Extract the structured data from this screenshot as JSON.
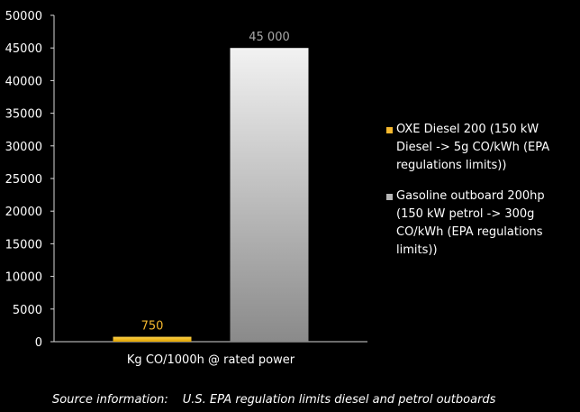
{
  "chart_data": {
    "type": "bar",
    "categories": [
      "Kg CO/1000h @ rated power"
    ],
    "series": [
      {
        "name": "OXE Diesel 200 (150 kW Diesel -> 5g CO/kWh (EPA regulations limits))",
        "values": [
          750
        ],
        "color": "#f5b82e",
        "data_label": "750"
      },
      {
        "name": "Gasoline outboard 200hp (150 kW petrol -> 300g CO/kWh (EPA regulations limits))",
        "values": [
          45000
        ],
        "color": "#b5b5b5",
        "data_label": "45 000"
      }
    ],
    "ylim": [
      0,
      50000
    ],
    "yticks": [
      "0",
      "5000",
      "10000",
      "15000",
      "20000",
      "25000",
      "30000",
      "35000",
      "40000",
      "45000",
      "50000"
    ],
    "xlabel": "",
    "ylabel": "",
    "grid": false,
    "legend_position": "right"
  },
  "footer": {
    "source_label": "Source information:",
    "source_text": "U.S. EPA regulation limits diesel and petrol outboards"
  },
  "colors": {
    "background": "#000000",
    "diesel_label": "#f5b82e",
    "gasoline_label": "#a8a8a8"
  }
}
